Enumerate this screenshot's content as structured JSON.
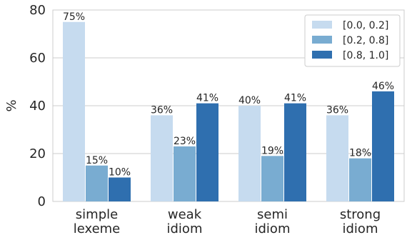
{
  "chart_data": {
    "type": "bar",
    "title": "",
    "xlabel": "",
    "ylabel": "%",
    "ylim": [
      0,
      80
    ],
    "yticks": [
      0,
      20,
      40,
      60,
      80
    ],
    "grid": "y",
    "legend_position": "top-right",
    "categories": [
      [
        "simple",
        "lexeme"
      ],
      [
        "weak",
        "idiom"
      ],
      [
        "semi",
        "idiom"
      ],
      [
        "strong",
        "idiom"
      ]
    ],
    "series": [
      {
        "name": "[0.0, 0.2]",
        "color": "#c6dbef",
        "values": [
          75,
          36,
          40,
          36
        ],
        "labels": [
          "75%",
          "36%",
          "40%",
          "36%"
        ]
      },
      {
        "name": "[0.2, 0.8]",
        "color": "#79acd1",
        "values": [
          15,
          23,
          19,
          18
        ],
        "labels": [
          "15%",
          "23%",
          "19%",
          "18%"
        ]
      },
      {
        "name": "[0.8, 1.0]",
        "color": "#2f6faf",
        "values": [
          10,
          41,
          41,
          46
        ],
        "labels": [
          "10%",
          "41%",
          "41%",
          "46%"
        ]
      }
    ]
  }
}
